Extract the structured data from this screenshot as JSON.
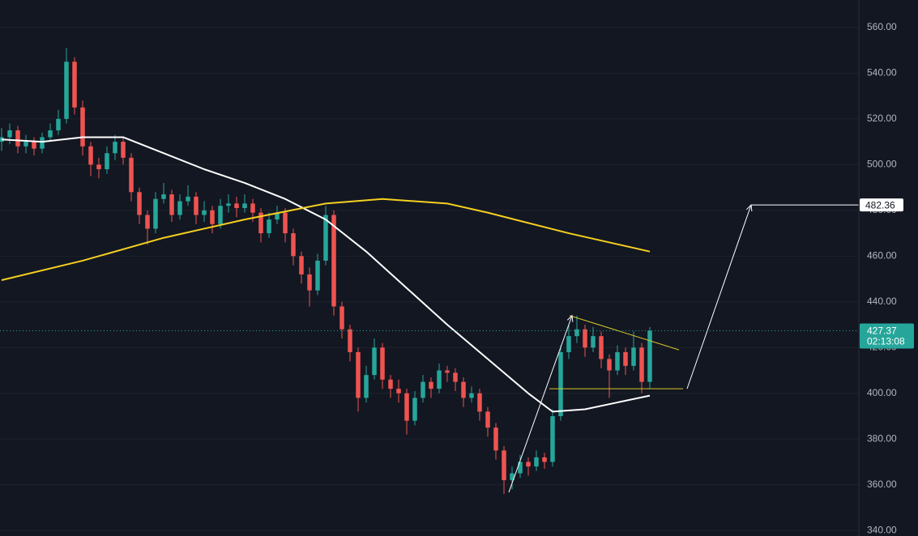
{
  "chart_data": {
    "type": "candlestick",
    "up_color": "#26a69a",
    "down_color": "#ef5350",
    "xlim": [
      -0.2,
      105.8
    ],
    "ylim": [
      337.6,
      572
    ],
    "yticks": [
      {
        "value": 340,
        "label": "340.00"
      },
      {
        "value": 360,
        "label": "360.00"
      },
      {
        "value": 380,
        "label": "380.00"
      },
      {
        "value": 400,
        "label": "400.00"
      },
      {
        "value": 420,
        "label": "420.00"
      },
      {
        "value": 440,
        "label": "440.00"
      },
      {
        "value": 460,
        "label": "460.00"
      },
      {
        "value": 480,
        "label": "480.00"
      },
      {
        "value": 500,
        "label": "500.00"
      },
      {
        "value": 520,
        "label": "520.00"
      },
      {
        "value": 540,
        "label": "540.00"
      },
      {
        "value": 560,
        "label": "560.00"
      }
    ],
    "grid": true,
    "countdown": "02:13:08",
    "candles": [
      [
        510,
        516,
        506,
        512
      ],
      [
        512,
        518,
        509,
        515
      ],
      [
        515,
        517,
        505,
        508
      ],
      [
        508,
        513,
        505,
        510
      ],
      [
        510,
        512,
        504,
        507
      ],
      [
        507,
        514,
        505,
        512
      ],
      [
        512,
        518,
        510,
        515
      ],
      [
        515,
        524,
        513,
        520
      ],
      [
        520,
        551,
        518,
        545
      ],
      [
        545,
        547,
        522,
        525
      ],
      [
        525,
        528,
        504,
        508
      ],
      [
        508,
        510,
        495,
        500
      ],
      [
        500,
        503,
        494,
        498
      ],
      [
        498,
        508,
        496,
        505
      ],
      [
        505,
        513,
        502,
        510
      ],
      [
        510,
        512,
        500,
        503
      ],
      [
        503,
        505,
        484,
        488
      ],
      [
        488,
        490,
        474,
        478
      ],
      [
        478,
        480,
        465,
        472
      ],
      [
        472,
        488,
        470,
        485
      ],
      [
        485,
        492,
        483,
        487
      ],
      [
        487,
        489,
        475,
        478
      ],
      [
        478,
        487,
        476,
        484
      ],
      [
        484,
        491,
        482,
        486
      ],
      [
        486,
        488,
        474,
        478
      ],
      [
        478,
        484,
        475,
        480
      ],
      [
        480,
        482,
        470,
        474
      ],
      [
        474,
        485,
        472,
        482
      ],
      [
        482,
        487,
        479,
        483
      ],
      [
        483,
        486,
        477,
        481
      ],
      [
        481,
        487,
        479,
        483
      ],
      [
        483,
        485,
        475,
        479
      ],
      [
        479,
        481,
        466,
        470
      ],
      [
        470,
        479,
        468,
        476
      ],
      [
        476,
        482,
        474,
        479
      ],
      [
        479,
        481,
        466,
        470
      ],
      [
        470,
        472,
        456,
        460
      ],
      [
        460,
        462,
        448,
        452
      ],
      [
        452,
        455,
        438,
        445
      ],
      [
        445,
        461,
        443,
        458
      ],
      [
        458,
        482,
        456,
        478
      ],
      [
        478,
        480,
        434,
        438
      ],
      [
        438,
        440,
        424,
        428
      ],
      [
        428,
        430,
        414,
        418
      ],
      [
        418,
        420,
        392,
        398
      ],
      [
        398,
        412,
        396,
        408
      ],
      [
        408,
        424,
        406,
        420
      ],
      [
        420,
        422,
        402,
        406
      ],
      [
        406,
        408,
        398,
        402
      ],
      [
        402,
        406,
        396,
        400
      ],
      [
        400,
        402,
        382,
        388
      ],
      [
        388,
        401,
        386,
        398
      ],
      [
        398,
        408,
        396,
        405
      ],
      [
        405,
        407,
        398,
        402
      ],
      [
        402,
        413,
        400,
        410
      ],
      [
        410,
        412,
        405,
        409
      ],
      [
        409,
        411,
        401,
        405
      ],
      [
        405,
        407,
        394,
        398
      ],
      [
        398,
        403,
        396,
        400
      ],
      [
        400,
        402,
        388,
        392
      ],
      [
        392,
        394,
        381,
        385
      ],
      [
        385,
        387,
        371,
        375
      ],
      [
        375,
        377,
        356,
        362
      ],
      [
        362,
        368,
        358,
        365
      ],
      [
        365,
        373,
        363,
        370
      ],
      [
        370,
        372,
        364,
        368
      ],
      [
        368,
        375,
        366,
        372
      ],
      [
        372,
        374,
        367,
        370
      ],
      [
        370,
        393,
        368,
        390
      ],
      [
        390,
        421,
        388,
        418
      ],
      [
        418,
        430,
        415,
        425
      ],
      [
        425,
        434,
        422,
        428
      ],
      [
        428,
        430,
        416,
        420
      ],
      [
        420,
        429,
        418,
        425
      ],
      [
        425,
        427,
        411,
        415
      ],
      [
        415,
        417,
        398,
        410
      ],
      [
        410,
        421,
        408,
        418
      ],
      [
        418,
        420,
        408,
        412
      ],
      [
        412,
        427,
        410,
        420
      ],
      [
        420,
        422,
        400,
        405
      ],
      [
        405,
        429,
        402,
        427.37
      ]
    ],
    "moving_averages": [
      {
        "color": "#ffffff",
        "x": [
          0,
          5,
          10,
          15,
          20,
          25,
          30,
          35,
          40,
          45,
          50,
          55,
          60,
          65,
          68,
          72,
          76,
          80
        ],
        "values": [
          511,
          510,
          512,
          512,
          505,
          498,
          492,
          485,
          476,
          462,
          446,
          430,
          415,
          400,
          392,
          393,
          396,
          399
        ]
      },
      {
        "color": "#f5d020",
        "x": [
          0,
          10,
          20,
          30,
          40,
          47,
          55,
          60,
          70,
          80
        ],
        "values": [
          449.5,
          458,
          468,
          476,
          483,
          485,
          483,
          479,
          470,
          462
        ]
      }
    ],
    "drawings": [
      {
        "color": "#ffffff",
        "x": [
          62.6,
          70.4
        ],
        "values": [
          356.7,
          434
        ]
      },
      {
        "color": "#d8c62a",
        "x": [
          70.1,
          83.6
        ],
        "values": [
          434,
          419
        ]
      },
      {
        "color": "#d8c62a",
        "x": [
          67.6,
          84.1
        ],
        "values": [
          402,
          402
        ]
      },
      {
        "color": "#ffffff",
        "x": [
          84.6,
          92.5
        ],
        "values": [
          402,
          482.36
        ]
      }
    ]
  }
}
